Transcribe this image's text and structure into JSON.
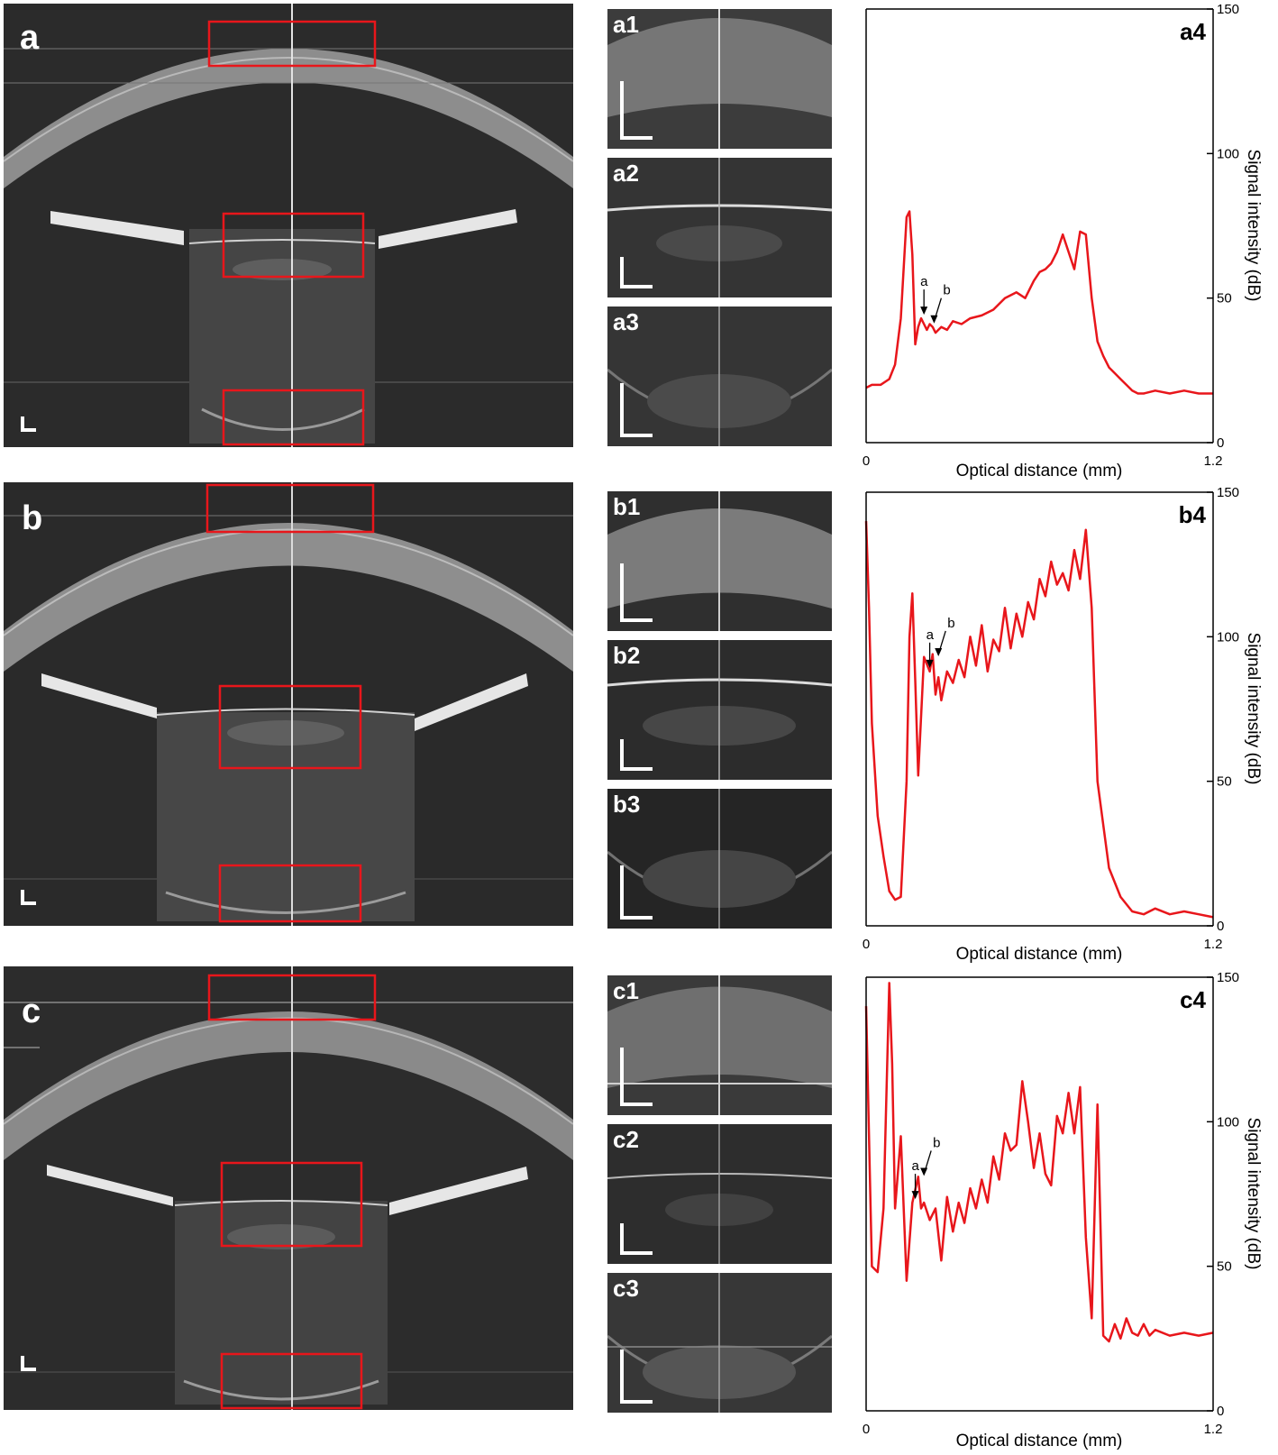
{
  "rows": [
    {
      "id": "a",
      "label": "a",
      "thumbs": [
        "a1",
        "a2",
        "a3"
      ],
      "plot": {
        "label": "a4",
        "xlabel": "Optical distance (mm)",
        "ylabel": "Signal intensity (dB)",
        "xticks": [
          "0",
          "1.2"
        ],
        "yticks": [
          "0",
          "50",
          "100",
          "150"
        ],
        "markers": [
          "a",
          "b"
        ]
      }
    },
    {
      "id": "b",
      "label": "b",
      "thumbs": [
        "b1",
        "b2",
        "b3"
      ],
      "plot": {
        "label": "b4",
        "xlabel": "Optical distance (mm)",
        "ylabel": "Signal intensity (dB)",
        "xticks": [
          "0",
          "1.2"
        ],
        "yticks": [
          "0",
          "50",
          "100",
          "150"
        ],
        "markers": [
          "a",
          "b"
        ]
      }
    },
    {
      "id": "c",
      "label": "c",
      "thumbs": [
        "c1",
        "c2",
        "c3"
      ],
      "plot": {
        "label": "c4",
        "xlabel": "Optical distance (mm)",
        "ylabel": "Signal intensity (dB)",
        "xticks": [
          "0",
          "1.2"
        ],
        "yticks": [
          "0",
          "50",
          "100",
          "150"
        ],
        "markers": [
          "a",
          "b"
        ]
      }
    }
  ],
  "chart_data": [
    {
      "type": "line",
      "panel": "a4",
      "xlabel": "Optical distance (mm)",
      "ylabel": "Signal intensity (dB)",
      "xlim": [
        0,
        1.2
      ],
      "ylim": [
        0,
        150
      ],
      "series": [
        {
          "color": "#e8161b",
          "x": [
            0.0,
            0.02,
            0.05,
            0.08,
            0.1,
            0.12,
            0.14,
            0.15,
            0.16,
            0.17,
            0.18,
            0.19,
            0.2,
            0.21,
            0.22,
            0.23,
            0.24,
            0.25,
            0.26,
            0.28,
            0.3,
            0.33,
            0.36,
            0.4,
            0.44,
            0.48,
            0.52,
            0.55,
            0.58,
            0.6,
            0.62,
            0.64,
            0.66,
            0.68,
            0.7,
            0.72,
            0.74,
            0.76,
            0.78,
            0.8,
            0.82,
            0.84,
            0.86,
            0.88,
            0.9,
            0.92,
            0.94,
            0.96,
            1.0,
            1.05,
            1.1,
            1.15,
            1.2
          ],
          "y": [
            19,
            20,
            20,
            22,
            27,
            43,
            78,
            80,
            65,
            34,
            40,
            43,
            41,
            39,
            41,
            40,
            38,
            39,
            40,
            39,
            42,
            41,
            43,
            44,
            46,
            50,
            52,
            50,
            56,
            59,
            60,
            62,
            66,
            72,
            66,
            60,
            73,
            72,
            50,
            35,
            30,
            26,
            24,
            22,
            20,
            18,
            17,
            17,
            18,
            17,
            18,
            17,
            17
          ]
        }
      ]
    },
    {
      "type": "line",
      "panel": "b4",
      "xlabel": "Optical distance (mm)",
      "ylabel": "Signal intensity (dB)",
      "xlim": [
        0,
        1.2
      ],
      "ylim": [
        0,
        150
      ],
      "series": [
        {
          "color": "#e8161b",
          "x": [
            0.0,
            0.01,
            0.02,
            0.04,
            0.06,
            0.08,
            0.1,
            0.12,
            0.14,
            0.15,
            0.16,
            0.17,
            0.18,
            0.2,
            0.22,
            0.23,
            0.24,
            0.25,
            0.26,
            0.28,
            0.3,
            0.32,
            0.34,
            0.36,
            0.38,
            0.4,
            0.42,
            0.44,
            0.46,
            0.48,
            0.5,
            0.52,
            0.54,
            0.56,
            0.58,
            0.6,
            0.62,
            0.64,
            0.66,
            0.68,
            0.7,
            0.72,
            0.74,
            0.76,
            0.78,
            0.8,
            0.84,
            0.88,
            0.92,
            0.96,
            1.0,
            1.05,
            1.1,
            1.15,
            1.2
          ],
          "y": [
            140,
            110,
            70,
            38,
            24,
            12,
            9,
            10,
            50,
            100,
            115,
            85,
            52,
            93,
            88,
            94,
            80,
            86,
            78,
            88,
            84,
            92,
            86,
            100,
            90,
            104,
            88,
            99,
            95,
            110,
            96,
            108,
            100,
            112,
            106,
            120,
            114,
            126,
            118,
            122,
            116,
            130,
            120,
            137,
            110,
            50,
            20,
            10,
            5,
            4,
            6,
            4,
            5,
            4,
            3
          ]
        }
      ]
    },
    {
      "type": "line",
      "panel": "c4",
      "xlabel": "Optical distance (mm)",
      "ylabel": "Signal intensity (dB)",
      "xlim": [
        0,
        1.2
      ],
      "ylim": [
        0,
        150
      ],
      "series": [
        {
          "color": "#e8161b",
          "x": [
            0.0,
            0.02,
            0.04,
            0.06,
            0.08,
            0.09,
            0.1,
            0.12,
            0.14,
            0.16,
            0.18,
            0.19,
            0.2,
            0.22,
            0.24,
            0.26,
            0.28,
            0.3,
            0.32,
            0.34,
            0.36,
            0.38,
            0.4,
            0.42,
            0.44,
            0.46,
            0.48,
            0.5,
            0.52,
            0.54,
            0.56,
            0.58,
            0.6,
            0.62,
            0.64,
            0.66,
            0.68,
            0.7,
            0.72,
            0.74,
            0.76,
            0.78,
            0.8,
            0.82,
            0.84,
            0.86,
            0.88,
            0.9,
            0.92,
            0.94,
            0.96,
            0.98,
            1.0,
            1.05,
            1.1,
            1.15,
            1.2
          ],
          "y": [
            140,
            50,
            48,
            70,
            148,
            120,
            70,
            95,
            45,
            72,
            81,
            70,
            72,
            66,
            70,
            52,
            74,
            62,
            72,
            65,
            77,
            70,
            80,
            72,
            88,
            80,
            96,
            90,
            92,
            114,
            100,
            84,
            96,
            82,
            78,
            102,
            96,
            110,
            96,
            112,
            60,
            32,
            106,
            26,
            24,
            30,
            25,
            32,
            27,
            26,
            30,
            26,
            28,
            26,
            27,
            26,
            27
          ]
        }
      ]
    }
  ]
}
